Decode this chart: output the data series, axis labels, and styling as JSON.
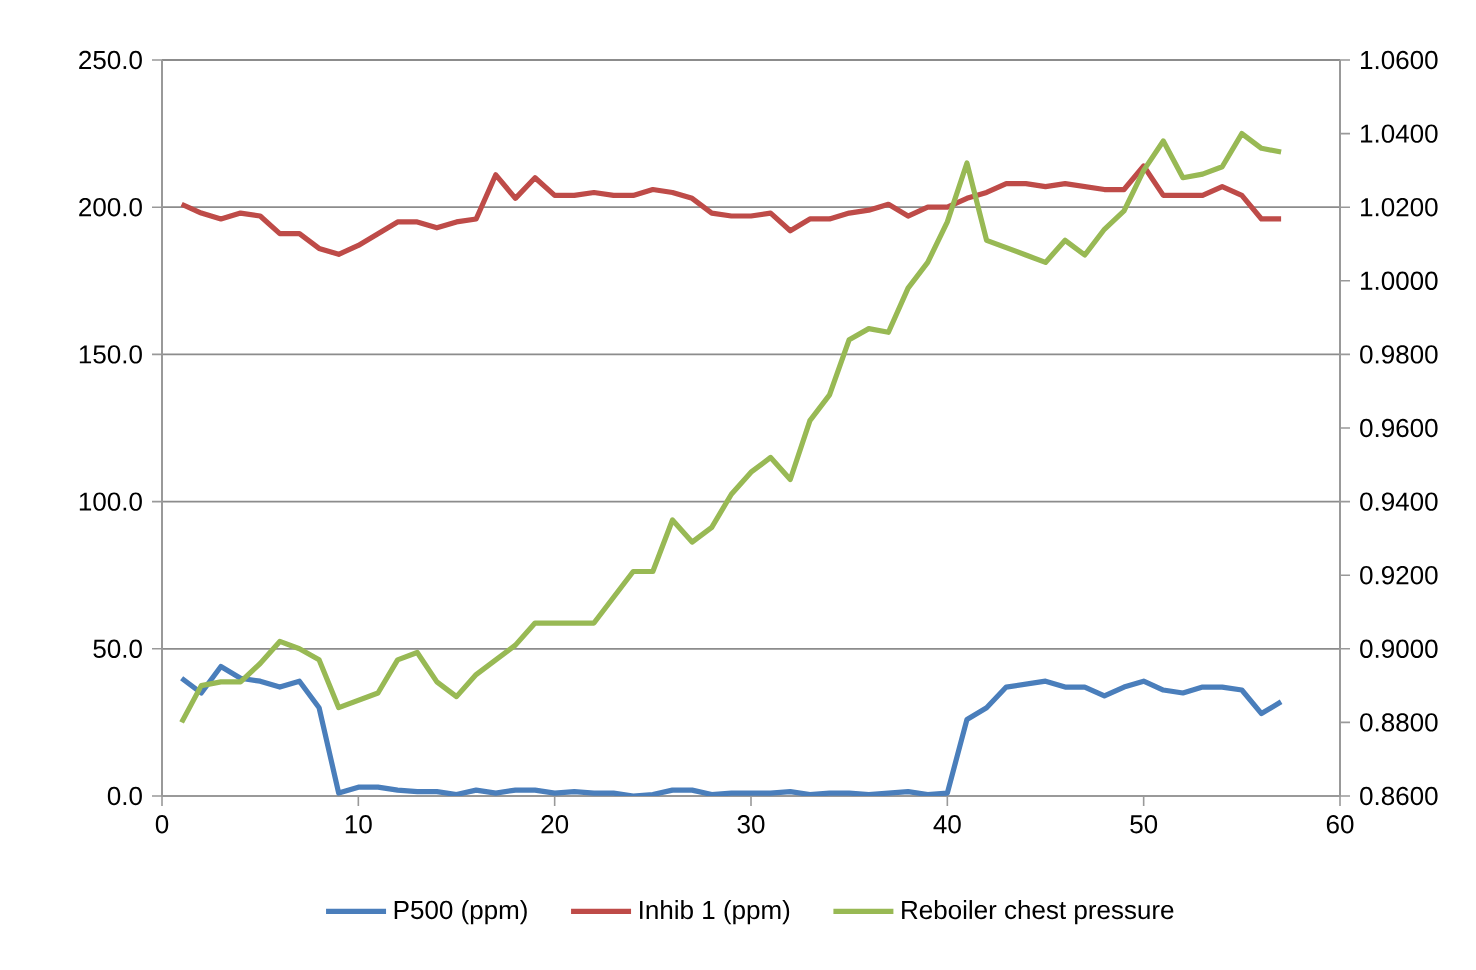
{
  "chart_data": {
    "type": "line",
    "x": [
      1,
      2,
      3,
      4,
      5,
      6,
      7,
      8,
      9,
      10,
      11,
      12,
      13,
      14,
      15,
      16,
      17,
      18,
      19,
      20,
      21,
      22,
      23,
      24,
      25,
      26,
      27,
      28,
      29,
      30,
      31,
      32,
      33,
      34,
      35,
      36,
      37,
      38,
      39,
      40,
      41,
      42,
      43,
      44,
      45,
      46,
      47,
      48,
      49,
      50,
      51,
      52,
      53,
      54,
      55,
      56,
      57
    ],
    "series": [
      {
        "name": "P500 (ppm)",
        "color": "#4a7ebb",
        "values": [
          40,
          35,
          44,
          40,
          39,
          37,
          39,
          30,
          1,
          3,
          3,
          2,
          1.5,
          1.5,
          0.5,
          2,
          1,
          2,
          2,
          1,
          1.5,
          1,
          1,
          0,
          0.5,
          2,
          2,
          0.5,
          1,
          1,
          1,
          1.5,
          0.5,
          1,
          1,
          0.5,
          1,
          1.5,
          0.5,
          1,
          26,
          30,
          37,
          38,
          39,
          37,
          37,
          34,
          37,
          39,
          36,
          35,
          37,
          37,
          36,
          28,
          32
        ]
      },
      {
        "name": "Inhib 1 (ppm)",
        "color": "#be4b48",
        "values": [
          201,
          198,
          196,
          198,
          197,
          191,
          191,
          186,
          184,
          187,
          191,
          195,
          195,
          193,
          195,
          196,
          211,
          203,
          210,
          204,
          204,
          205,
          204,
          204,
          206,
          205,
          203,
          198,
          197,
          197,
          198,
          192,
          196,
          196,
          198,
          199,
          201,
          197,
          200,
          200,
          203,
          205,
          208,
          208,
          207,
          208,
          207,
          206,
          206,
          214,
          204,
          204,
          204,
          207,
          204,
          196,
          196
        ]
      },
      {
        "name": "Reboiler chest pressure",
        "color": "#98b954",
        "axis": "y2",
        "values": [
          0.88,
          0.89,
          0.891,
          0.891,
          0.896,
          0.902,
          0.9,
          0.897,
          0.884,
          0.886,
          0.888,
          0.897,
          0.899,
          0.891,
          0.887,
          0.893,
          0.897,
          0.901,
          0.907,
          0.907,
          0.907,
          0.907,
          0.914,
          0.921,
          0.921,
          0.935,
          0.929,
          0.933,
          0.942,
          0.948,
          0.952,
          0.946,
          0.962,
          0.969,
          0.984,
          0.987,
          0.986,
          0.998,
          1.005,
          1.016,
          1.032,
          1.011,
          1.009,
          1.007,
          1.005,
          1.011,
          1.007,
          1.014,
          1.019,
          1.03,
          1.038,
          1.028,
          1.029,
          1.031,
          1.04,
          1.036,
          1.035
        ]
      }
    ],
    "xlim": [
      0,
      60
    ],
    "xticks": [
      0,
      10,
      20,
      30,
      40,
      50,
      60
    ],
    "ylim": [
      0,
      250
    ],
    "yticks": [
      {
        "value": 0,
        "label": "0.0"
      },
      {
        "value": 50,
        "label": "50.0"
      },
      {
        "value": 100,
        "label": "100.0"
      },
      {
        "value": 150,
        "label": "150.0"
      },
      {
        "value": 200,
        "label": "200.0"
      },
      {
        "value": 250,
        "label": "250.0"
      }
    ],
    "y2lim": [
      0.86,
      1.06
    ],
    "y2ticks": [
      {
        "value": 0.86,
        "label": "0.8600"
      },
      {
        "value": 0.88,
        "label": "0.8800"
      },
      {
        "value": 0.9,
        "label": "0.9000"
      },
      {
        "value": 0.92,
        "label": "0.9200"
      },
      {
        "value": 0.94,
        "label": "0.9400"
      },
      {
        "value": 0.96,
        "label": "0.9600"
      },
      {
        "value": 0.98,
        "label": "0.9800"
      },
      {
        "value": 1.0,
        "label": "1.0000"
      },
      {
        "value": 1.02,
        "label": "1.0200"
      },
      {
        "value": 1.04,
        "label": "1.0400"
      },
      {
        "value": 1.06,
        "label": "1.0600"
      }
    ],
    "grid": "y",
    "legend": "bottom",
    "marker": "none",
    "line_style": "solid"
  }
}
